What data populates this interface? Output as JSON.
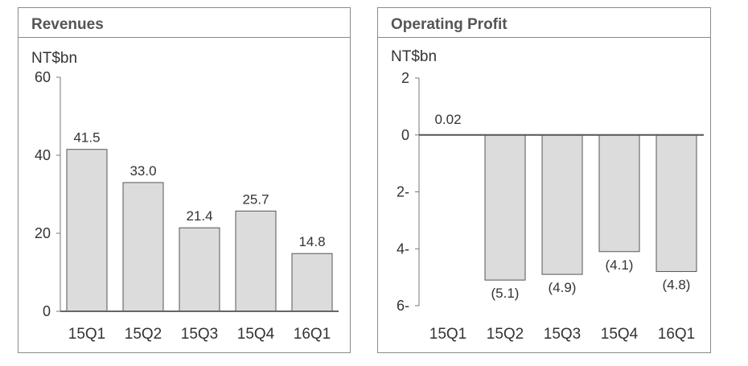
{
  "chart_data": [
    {
      "type": "bar",
      "title": "Revenues",
      "ylabel": "NT$bn",
      "categories": [
        "15Q1",
        "15Q2",
        "15Q3",
        "15Q4",
        "16Q1"
      ],
      "values": [
        41.5,
        33.0,
        21.4,
        25.7,
        14.8
      ],
      "data_labels": [
        "41.5",
        "33.0",
        "21.4",
        "25.7",
        "14.8"
      ],
      "ylim": [
        0,
        60
      ],
      "yticks": [
        {
          "value": 0,
          "label": "0"
        },
        {
          "value": 20,
          "label": "20"
        },
        {
          "value": 40,
          "label": "40"
        },
        {
          "value": 60,
          "label": "60"
        }
      ],
      "grid": false,
      "bar_color": "#dcdcdc"
    },
    {
      "type": "bar",
      "title": "Operating Profit",
      "ylabel": "NT$bn",
      "categories": [
        "15Q1",
        "15Q2",
        "15Q3",
        "15Q4",
        "16Q1"
      ],
      "values": [
        0.02,
        -5.1,
        -4.9,
        -4.1,
        -4.8
      ],
      "data_labels": [
        "0.02",
        "(5.1)",
        "(4.9)",
        "(4.1)",
        "(4.8)"
      ],
      "ylim": [
        -6,
        2
      ],
      "yticks": [
        {
          "value": 2,
          "label": "2"
        },
        {
          "value": 0,
          "label": "0"
        },
        {
          "value": -2,
          "label": "2-"
        },
        {
          "value": -4,
          "label": "4-"
        },
        {
          "value": -6,
          "label": "6-"
        }
      ],
      "grid": false,
      "bar_color": "#dcdcdc"
    }
  ]
}
